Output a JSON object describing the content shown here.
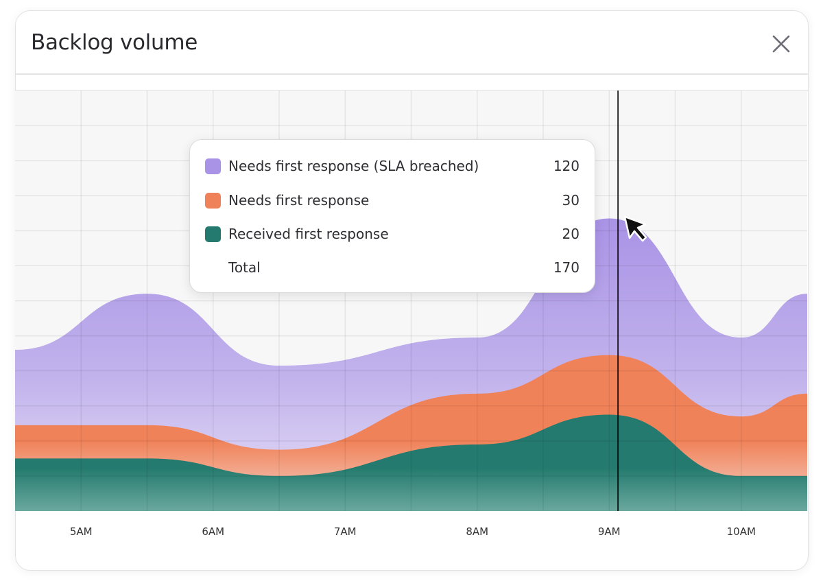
{
  "header": {
    "title": "Backlog volume",
    "close_icon": "close-icon"
  },
  "tooltip": {
    "rows": [
      {
        "label": "Needs first response (SLA breached)",
        "value": "120",
        "color": "#a993e6"
      },
      {
        "label": "Needs first response",
        "value": "30",
        "color": "#f08259"
      },
      {
        "label": "Received first response",
        "value": "20",
        "color": "#247a6e"
      }
    ],
    "total_label": "Total",
    "total_value": "170"
  },
  "chart_data": {
    "type": "area",
    "stacked": true,
    "title": "Backlog volume",
    "x": [
      "4:30AM",
      "5:30AM",
      "6:30AM",
      "8:00AM",
      "9:00AM",
      "10:00AM",
      "10:30AM"
    ],
    "x_ticks": [
      "5AM",
      "6AM",
      "7AM",
      "8AM",
      "9AM",
      "10AM"
    ],
    "xlim": [
      "4:30AM",
      "10:30AM"
    ],
    "ylim": [
      0,
      240
    ],
    "grid": true,
    "cursor_x": "9:04AM",
    "series": [
      {
        "name": "Received first response",
        "color": "#247a6e",
        "values": [
          30,
          30,
          20,
          38,
          55,
          20,
          20
        ]
      },
      {
        "name": "Needs first response",
        "color": "#f08259",
        "values": [
          19,
          19,
          15,
          29,
          34,
          34,
          47
        ]
      },
      {
        "name": "Needs first response (SLA breached)",
        "color": "#a993e6",
        "values": [
          43,
          75,
          48,
          32,
          78,
          45,
          57
        ]
      }
    ]
  }
}
